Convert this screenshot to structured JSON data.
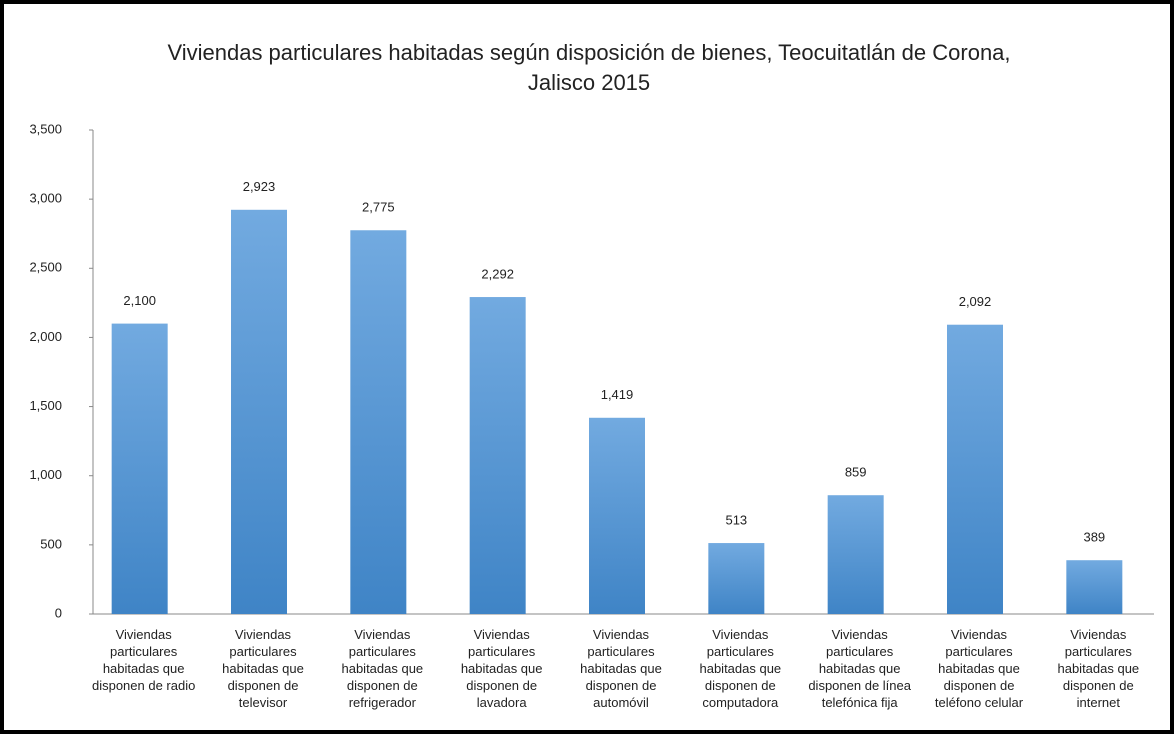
{
  "chart_data": {
    "type": "bar",
    "title": "Viviendas particulares habitadas según disposición de bienes, Teocuitatlán de Corona, Jalisco 2015",
    "categories": [
      "Viviendas particulares habitadas que disponen de radio",
      "Viviendas particulares habitadas que disponen de televisor",
      "Viviendas particulares habitadas que disponen de refrigerador",
      "Viviendas particulares habitadas que disponen de lavadora",
      "Viviendas particulares habitadas que disponen de automóvil",
      "Viviendas particulares habitadas que disponen de computadora",
      "Viviendas particulares habitadas que disponen de línea telefónica fija",
      "Viviendas particulares habitadas que disponen de teléfono celular",
      "Viviendas particulares habitadas que disponen de internet"
    ],
    "values": [
      2100,
      2923,
      2775,
      2292,
      1419,
      513,
      859,
      2092,
      389
    ],
    "value_labels": [
      "2,100",
      "2,923",
      "2,775",
      "2,292",
      "1,419",
      "513",
      "859",
      "2,092",
      "389"
    ],
    "color": "#4a8fd2",
    "ylim": [
      0,
      3500
    ],
    "yticks": [
      0,
      500,
      {
        "value": 1000,
        "label": "1,000"
      },
      {
        "value": 1500,
        "label": "1,500"
      },
      {
        "value": 2000,
        "label": "2,000"
      },
      {
        "value": 2500,
        "label": "2,500"
      },
      {
        "value": 3000,
        "label": "3,000"
      },
      {
        "value": 3500,
        "label": "3,500"
      }
    ]
  }
}
